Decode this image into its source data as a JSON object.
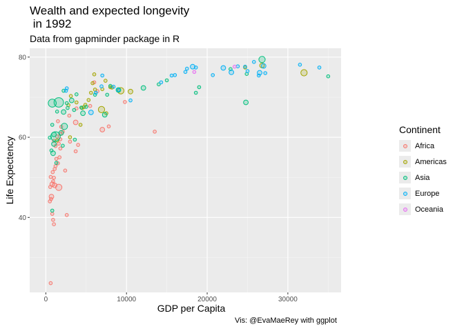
{
  "chart_data": {
    "type": "scatter",
    "title": "Wealth and expected longevity\n in 1992",
    "subtitle": "Data from gapminder package in R",
    "caption": "Vis: @EvaMaeRey with ggplot",
    "xlabel": "GDP per Capita",
    "ylabel": "Life Expectency",
    "xlim": [
      -2000,
      36600
    ],
    "ylim": [
      21.3,
      82.2
    ],
    "xticks": [
      0,
      10000,
      20000,
      30000
    ],
    "xtick_labels": [
      "0",
      "10000",
      "20000",
      "30000"
    ],
    "yticks": [
      40,
      60,
      80
    ],
    "ytick_labels": [
      "40",
      "60",
      "80"
    ],
    "grid": true,
    "legend": {
      "title": "Continent",
      "placement": "right",
      "items": [
        {
          "name": "Africa",
          "color": "#F8766D"
        },
        {
          "name": "Americas",
          "color": "#A3A500"
        },
        {
          "name": "Asia",
          "color": "#00BF7D"
        },
        {
          "name": "Europe",
          "color": "#00B0F6"
        },
        {
          "name": "Oceania",
          "color": "#E76BF3"
        }
      ]
    },
    "series": [
      {
        "name": "Africa",
        "color": "#F8766D",
        "points": [
          [
            600,
            23.6,
            1
          ],
          [
            500,
            44.0,
            1
          ],
          [
            650,
            44.6,
            1
          ],
          [
            700,
            45.2,
            1.5
          ],
          [
            550,
            47.6,
            1
          ],
          [
            800,
            48.3,
            1.5
          ],
          [
            900,
            49.0,
            1
          ],
          [
            1000,
            49.9,
            1
          ],
          [
            600,
            50.1,
            1
          ],
          [
            850,
            51.3,
            1
          ],
          [
            1100,
            52.1,
            1
          ],
          [
            1200,
            52.8,
            1
          ],
          [
            1500,
            53.5,
            1
          ],
          [
            1300,
            54.6,
            1
          ],
          [
            1700,
            55.0,
            1
          ],
          [
            1800,
            57.2,
            1
          ],
          [
            1200,
            57.8,
            1
          ],
          [
            1600,
            58.4,
            1
          ],
          [
            1000,
            59.1,
            1
          ],
          [
            1800,
            59.5,
            1
          ],
          [
            1400,
            60.2,
            1
          ],
          [
            1800,
            60.8,
            1
          ],
          [
            2100,
            61.4,
            1
          ],
          [
            1900,
            62.6,
            1
          ],
          [
            1500,
            64.0,
            1
          ],
          [
            800,
            40.9,
            1
          ],
          [
            900,
            39.4,
            1
          ],
          [
            1000,
            38.3,
            1
          ],
          [
            2600,
            40.6,
            1
          ],
          [
            1600,
            47.5,
            2
          ],
          [
            1100,
            48.0,
            1.5
          ],
          [
            2400,
            51.7,
            1
          ],
          [
            3000,
            58.9,
            1
          ],
          [
            3700,
            56.5,
            1
          ],
          [
            4000,
            58.1,
            1
          ],
          [
            3700,
            63.7,
            1.5
          ],
          [
            2900,
            65.4,
            1
          ],
          [
            7000,
            61.9,
            1.5
          ],
          [
            7800,
            62.7,
            1
          ],
          [
            9800,
            68.8,
            1
          ],
          [
            13500,
            61.4,
            1
          ],
          [
            6400,
            71.5,
            1
          ],
          [
            6000,
            73.7,
            1
          ],
          [
            5500,
            67.8,
            1
          ],
          [
            3800,
            67.2,
            1
          ]
        ]
      },
      {
        "name": "Americas",
        "color": "#A3A500",
        "points": [
          [
            32000,
            76.1,
            2
          ],
          [
            26800,
            77.9,
            1.5
          ],
          [
            6000,
            75.7,
            1
          ],
          [
            9300,
            71.6,
            2
          ],
          [
            6900,
            66.9,
            2
          ],
          [
            7000,
            72.0,
            1
          ],
          [
            7400,
            74.1,
            1
          ],
          [
            5800,
            73.5,
            1
          ],
          [
            10500,
            71.4,
            1.5
          ],
          [
            8000,
            72.5,
            1
          ],
          [
            4500,
            67.3,
            1
          ],
          [
            4300,
            63.1,
            1
          ],
          [
            3000,
            60.0,
            1
          ],
          [
            2800,
            68.0,
            1
          ],
          [
            3800,
            68.7,
            1
          ],
          [
            5300,
            69.3,
            1
          ],
          [
            1400,
            59.2,
            1
          ],
          [
            4700,
            67.5,
            1
          ],
          [
            6100,
            71.9,
            1
          ],
          [
            7500,
            66.0,
            1
          ],
          [
            8200,
            72.4,
            1
          ],
          [
            4900,
            68.1,
            1
          ],
          [
            24700,
            77.4,
            1
          ],
          [
            3100,
            70.3,
            1
          ],
          [
            5600,
            71.1,
            1
          ]
        ]
      },
      {
        "name": "Asia",
        "color": "#00BF7D",
        "points": [
          [
            1600,
            68.7,
            3
          ],
          [
            1200,
            60.2,
            3
          ],
          [
            26800,
            79.4,
            2
          ],
          [
            800,
            41.7,
            1
          ],
          [
            900,
            56.0,
            1.5
          ],
          [
            1000,
            58.3,
            1.5
          ],
          [
            1300,
            53.6,
            1
          ],
          [
            1900,
            61.1,
            1.5
          ],
          [
            2300,
            62.7,
            2
          ],
          [
            2700,
            67.3,
            1
          ],
          [
            2200,
            66.3,
            1.5
          ],
          [
            3200,
            69.2,
            1.5
          ],
          [
            3600,
            59.4,
            1
          ],
          [
            3800,
            70.7,
            1
          ],
          [
            5000,
            67.6,
            1
          ],
          [
            4600,
            66.0,
            1.5
          ],
          [
            7300,
            65.6,
            1.5
          ],
          [
            7600,
            70.6,
            1
          ],
          [
            8000,
            72.8,
            1
          ],
          [
            12100,
            72.3,
            1.5
          ],
          [
            18600,
            71.1,
            1
          ],
          [
            19000,
            72.5,
            1
          ],
          [
            24800,
            68.7,
            1.5
          ],
          [
            24900,
            75.8,
            1
          ],
          [
            35000,
            75.2,
            1
          ],
          [
            14000,
            73.2,
            1
          ],
          [
            6100,
            70.6,
            1
          ],
          [
            3500,
            66.8,
            1
          ],
          [
            2200,
            71.6,
            1
          ],
          [
            800,
            63.1,
            1
          ],
          [
            500,
            59.9,
            1
          ],
          [
            700,
            56.7,
            1
          ],
          [
            1000,
            60.7,
            1.5
          ],
          [
            2600,
            68.5,
            1
          ],
          [
            15000,
            74.2,
            1
          ],
          [
            9000,
            71.8,
            1.5
          ],
          [
            4400,
            67.4,
            1
          ],
          [
            22900,
            77.0,
            1
          ],
          [
            2100,
            57.9,
            1
          ],
          [
            1400,
            66.4,
            1
          ],
          [
            800,
            68.5,
            2.5
          ]
        ]
      },
      {
        "name": "Europe",
        "color": "#00B0F6",
        "points": [
          [
            2500,
            71.6,
            1
          ],
          [
            2600,
            72.2,
            1
          ],
          [
            5600,
            66.2,
            1.5
          ],
          [
            6200,
            71.1,
            1
          ],
          [
            6900,
            72.7,
            1
          ],
          [
            7000,
            75.4,
            1
          ],
          [
            8400,
            72.6,
            1
          ],
          [
            9000,
            71.8,
            1
          ],
          [
            10500,
            69.2,
            1
          ],
          [
            14300,
            73.7,
            1
          ],
          [
            16000,
            75.5,
            1
          ],
          [
            17500,
            77.1,
            1
          ],
          [
            18200,
            77.6,
            1.5
          ],
          [
            18600,
            77.4,
            1
          ],
          [
            20700,
            75.5,
            1
          ],
          [
            22000,
            77.3,
            1.5
          ],
          [
            23000,
            76.2,
            1.5
          ],
          [
            24700,
            77.6,
            1
          ],
          [
            25000,
            76.5,
            1
          ],
          [
            25800,
            78.8,
            1
          ],
          [
            26400,
            75.4,
            1
          ],
          [
            26500,
            76.1,
            1.5
          ],
          [
            27000,
            77.8,
            1.5
          ],
          [
            27200,
            76.0,
            1
          ],
          [
            31500,
            78.1,
            1
          ],
          [
            33900,
            77.4,
            1
          ],
          [
            23800,
            77.7,
            1
          ],
          [
            17300,
            76.3,
            1
          ],
          [
            15600,
            75.4,
            1
          ]
        ]
      },
      {
        "name": "Oceania",
        "color": "#E76BF3",
        "points": [
          [
            23400,
            77.6,
            1
          ],
          [
            18400,
            76.3,
            1
          ]
        ]
      }
    ]
  }
}
